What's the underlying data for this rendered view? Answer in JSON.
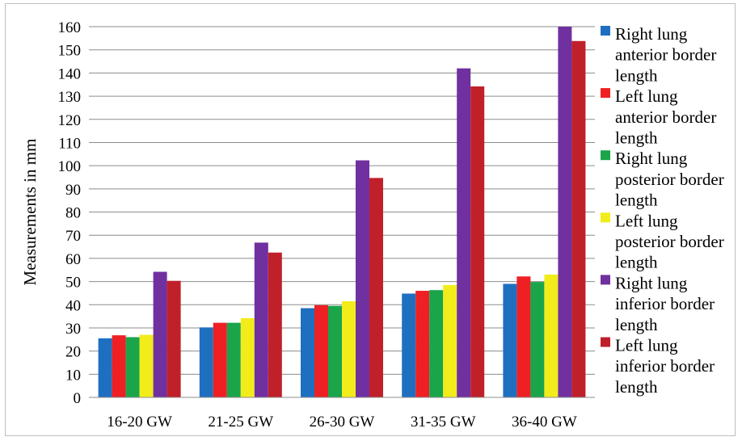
{
  "chart_data": {
    "type": "bar",
    "ylabel": "Measurements in mm",
    "xlabel": "",
    "ylim": [
      0,
      160
    ],
    "ytick_step": 10,
    "grid": true,
    "legend_position": "right",
    "categories": [
      "16-20 GW",
      "21-25 GW",
      "26-30 GW",
      "31-35 GW",
      "36-40 GW"
    ],
    "series": [
      {
        "name": "Right lung anterior border length",
        "color": "#1f6fc1",
        "values": [
          25.5,
          30.2,
          38.5,
          44.8,
          49.0
        ]
      },
      {
        "name": "Left lung anterior border length",
        "color": "#ee2024",
        "values": [
          26.8,
          32.2,
          39.8,
          46.0,
          52.2
        ]
      },
      {
        "name": "Right lung posterior border length",
        "color": "#1aa54a",
        "values": [
          26.0,
          32.2,
          39.5,
          46.3,
          49.8
        ]
      },
      {
        "name": "Left lung posterior border length",
        "color": "#f2ec1a",
        "values": [
          27.0,
          34.2,
          41.5,
          48.5,
          53.0
        ]
      },
      {
        "name": "Right lung inferior border length",
        "color": "#7030a0",
        "values": [
          54.2,
          66.8,
          102.3,
          142.0,
          160.0
        ]
      },
      {
        "name": "Left lung inferior border length",
        "color": "#c0202a",
        "values": [
          50.3,
          62.5,
          94.7,
          134.2,
          153.8
        ]
      }
    ],
    "legend_lines": [
      [
        "Right lung",
        "anterior border",
        "length"
      ],
      [
        "Left lung",
        "anterior border",
        "length"
      ],
      [
        "Right lung",
        "posterior border",
        "length"
      ],
      [
        "Left lung",
        "posterior border",
        "length"
      ],
      [
        "Right lung",
        "inferior border",
        "length"
      ],
      [
        "Left lung",
        "inferior border",
        "length"
      ]
    ]
  }
}
